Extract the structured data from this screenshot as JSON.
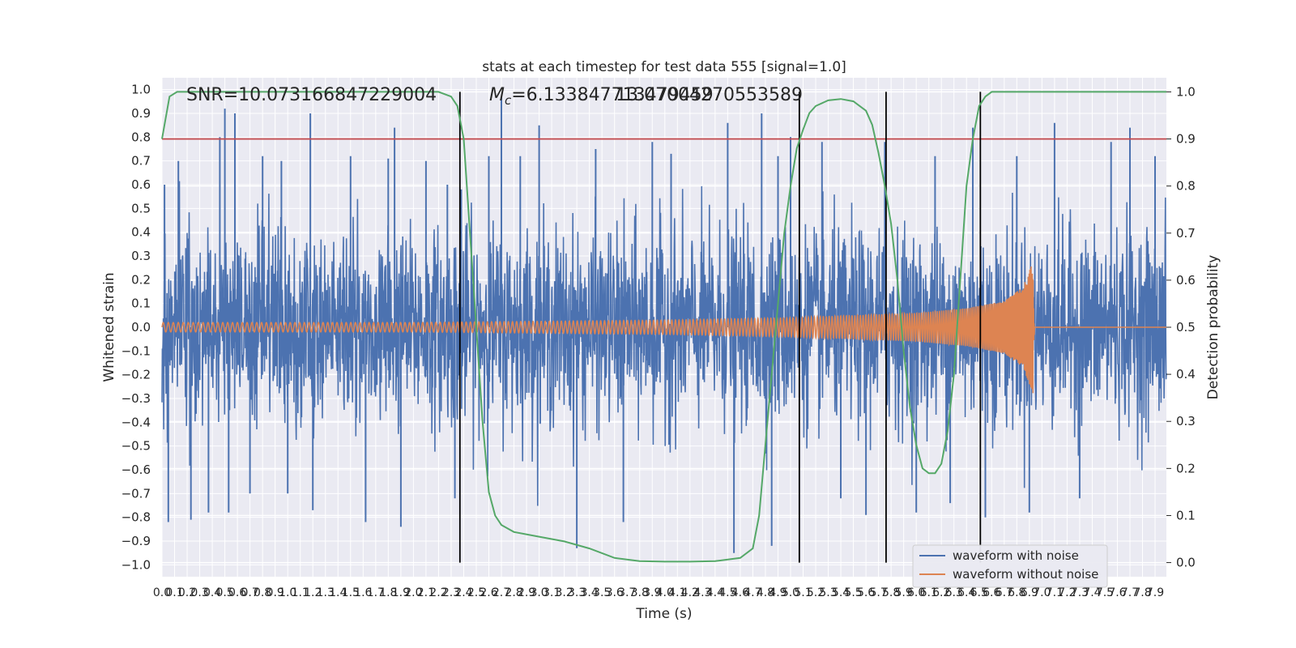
{
  "chart_data": {
    "type": "line",
    "title": "stats at each timestep for test data 555 [signal=1.0]",
    "xlabel": "Time (s)",
    "ylabel_left": "Whitened strain",
    "ylabel_right": "Detection probability",
    "xlim": [
      0.0,
      7.99
    ],
    "ylim_left": [
      -1.05,
      1.05
    ],
    "ylim_right": [
      -0.03,
      1.03
    ],
    "grid": true,
    "legend_position": "lower right",
    "annotations": {
      "snr": "SNR=10.073166847229004",
      "chirp_mass_symbol": "M",
      "chirp_mass_subscript": "c",
      "chirp_mass_value": "=6.133847713479459",
      "overlap_text": "13.07004270553589"
    },
    "x_ticks": [
      0.0,
      0.1,
      0.2,
      0.3,
      0.4,
      0.5,
      0.6,
      0.7,
      0.8,
      0.9,
      1.0,
      1.1,
      1.2,
      1.3,
      1.4,
      1.5,
      1.6,
      1.7,
      1.8,
      1.9,
      2.0,
      2.1,
      2.2,
      2.3,
      2.4,
      2.5,
      2.6,
      2.7,
      2.8,
      2.9,
      3.0,
      3.1,
      3.2,
      3.3,
      3.4,
      3.5,
      3.6,
      3.7,
      3.8,
      3.9,
      4.0,
      4.1,
      4.2,
      4.3,
      4.4,
      4.5,
      4.6,
      4.7,
      4.8,
      4.9,
      5.0,
      5.1,
      5.2,
      5.3,
      5.4,
      5.5,
      5.6,
      5.7,
      5.8,
      5.9,
      6.0,
      6.1,
      6.2,
      6.3,
      6.4,
      6.5,
      6.6,
      6.7,
      6.8,
      6.9,
      7.0,
      7.1,
      7.2,
      7.3,
      7.4,
      7.5,
      7.6,
      7.7,
      7.8,
      7.9
    ],
    "x_tick_labels": [
      "0.0",
      "0.1",
      "0.2",
      "0.3",
      "0.4",
      "0.5",
      "0.6",
      "0.7",
      "0.8",
      "0.9",
      "1.0",
      "1.1",
      "1.2",
      "1.3",
      "1.4",
      "1.5",
      "1.6",
      "1.7",
      "1.8",
      "1.9",
      "2.0",
      "2.1",
      "2.2",
      "2.3",
      "2.4",
      "2.5",
      "2.6",
      "2.7",
      "2.8",
      "2.9",
      "3.0",
      "3.1",
      "3.2",
      "3.3",
      "3.4",
      "3.5",
      "3.6",
      "3.7",
      "3.8",
      "3.9",
      "4.0",
      "4.1",
      "4.2",
      "4.3",
      "4.4",
      "4.5",
      "4.6",
      "4.7",
      "4.8",
      "4.9",
      "5.0",
      "5.1",
      "5.2",
      "5.3",
      "5.4",
      "5.5",
      "5.6",
      "5.7",
      "5.8",
      "5.9",
      "6.0",
      "6.1",
      "6.2",
      "6.3",
      "6.4",
      "6.5",
      "6.6",
      "6.7",
      "6.8",
      "6.9",
      "7.0",
      "7.1",
      "7.2",
      "7.3",
      "7.4",
      "7.5",
      "7.6",
      "7.7",
      "7.8",
      "7.9"
    ],
    "y_ticks_left": [
      -1.0,
      -0.9,
      -0.8,
      -0.7,
      -0.6,
      -0.5,
      -0.4,
      -0.3,
      -0.2,
      -0.1,
      0.0,
      0.1,
      0.2,
      0.3,
      0.4,
      0.5,
      0.6,
      0.7,
      0.8,
      0.9,
      1.0
    ],
    "y_tick_labels_left": [
      "−1.0",
      "−0.9",
      "−0.8",
      "−0.7",
      "−0.6",
      "−0.5",
      "−0.4",
      "−0.3",
      "−0.2",
      "−0.1",
      "0.0",
      "0.1",
      "0.2",
      "0.3",
      "0.4",
      "0.5",
      "0.6",
      "0.7",
      "0.8",
      "0.9",
      "1.0"
    ],
    "y_ticks_right": [
      0.0,
      0.1,
      0.2,
      0.3,
      0.4,
      0.5,
      0.6,
      0.7,
      0.8,
      0.9,
      1.0
    ],
    "y_tick_labels_right": [
      "0.0",
      "0.1",
      "0.2",
      "0.3",
      "0.4",
      "0.5",
      "0.6",
      "0.7",
      "0.8",
      "0.9",
      "1.0"
    ],
    "threshold_line": {
      "axis": "right",
      "y": 0.9,
      "color": "#c44e52"
    },
    "vertical_markers": {
      "x": [
        2.37,
        5.07,
        5.76,
        6.51
      ],
      "color": "#000000",
      "y_range_right": [
        0.0,
        1.0
      ]
    },
    "series": [
      {
        "name": "waveform with noise",
        "axis": "left",
        "color": "#4c72b0",
        "description_values": "dense noise; sample peaks",
        "peaks": [
          {
            "x": 0.02,
            "y": 0.6
          },
          {
            "x": 0.05,
            "y": -0.82
          },
          {
            "x": 0.13,
            "y": 0.7
          },
          {
            "x": 0.23,
            "y": -0.81
          },
          {
            "x": 0.37,
            "y": -0.78
          },
          {
            "x": 0.46,
            "y": 0.8
          },
          {
            "x": 0.5,
            "y": 0.92
          },
          {
            "x": 0.53,
            "y": -0.78
          },
          {
            "x": 0.58,
            "y": 0.9
          },
          {
            "x": 0.7,
            "y": -0.7
          },
          {
            "x": 0.8,
            "y": 0.72
          },
          {
            "x": 0.95,
            "y": 0.7
          },
          {
            "x": 1.0,
            "y": -0.7
          },
          {
            "x": 1.18,
            "y": 0.9
          },
          {
            "x": 1.2,
            "y": -0.77
          },
          {
            "x": 1.5,
            "y": 0.72
          },
          {
            "x": 1.62,
            "y": -0.82
          },
          {
            "x": 1.8,
            "y": 0.71
          },
          {
            "x": 1.85,
            "y": 0.84
          },
          {
            "x": 1.9,
            "y": -0.84
          },
          {
            "x": 2.1,
            "y": 0.7
          },
          {
            "x": 2.27,
            "y": 0.6
          },
          {
            "x": 2.33,
            "y": -0.72
          },
          {
            "x": 2.38,
            "y": 0.58
          },
          {
            "x": 2.6,
            "y": 0.72
          },
          {
            "x": 2.7,
            "y": 0.97
          },
          {
            "x": 2.85,
            "y": 0.72
          },
          {
            "x": 3.0,
            "y": 0.85
          },
          {
            "x": 3.3,
            "y": -0.93
          },
          {
            "x": 3.45,
            "y": 0.75
          },
          {
            "x": 3.67,
            "y": -0.82
          },
          {
            "x": 3.9,
            "y": 0.78
          },
          {
            "x": 4.05,
            "y": 0.73
          },
          {
            "x": 4.5,
            "y": 0.86
          },
          {
            "x": 4.55,
            "y": -0.95
          },
          {
            "x": 4.77,
            "y": 0.9
          },
          {
            "x": 4.85,
            "y": -0.92
          },
          {
            "x": 4.9,
            "y": 0.72
          },
          {
            "x": 5.0,
            "y": 0.8
          },
          {
            "x": 5.25,
            "y": 0.78
          },
          {
            "x": 5.4,
            "y": -0.72
          },
          {
            "x": 5.6,
            "y": -0.79
          },
          {
            "x": 5.75,
            "y": 0.78
          },
          {
            "x": 6.0,
            "y": -0.78
          },
          {
            "x": 6.15,
            "y": 0.72
          },
          {
            "x": 6.27,
            "y": -0.74
          },
          {
            "x": 6.45,
            "y": 0.84
          },
          {
            "x": 6.55,
            "y": -0.8
          },
          {
            "x": 6.8,
            "y": 0.72
          },
          {
            "x": 6.9,
            "y": -0.78
          },
          {
            "x": 7.1,
            "y": 0.86
          },
          {
            "x": 7.3,
            "y": -0.72
          },
          {
            "x": 7.55,
            "y": 0.78
          },
          {
            "x": 7.7,
            "y": 0.84
          },
          {
            "x": 7.9,
            "y": 0.72
          }
        ]
      },
      {
        "name": "waveform without noise",
        "axis": "left",
        "color": "#dd8452",
        "amplitude_envelope": [
          {
            "x": 0.0,
            "y": 0.02
          },
          {
            "x": 2.0,
            "y": 0.02
          },
          {
            "x": 3.0,
            "y": 0.025
          },
          {
            "x": 4.0,
            "y": 0.03
          },
          {
            "x": 5.0,
            "y": 0.04
          },
          {
            "x": 5.5,
            "y": 0.05
          },
          {
            "x": 6.0,
            "y": 0.06
          },
          {
            "x": 6.4,
            "y": 0.08
          },
          {
            "x": 6.7,
            "y": 0.11
          },
          {
            "x": 6.85,
            "y": 0.17
          },
          {
            "x": 6.93,
            "y": 0.28
          },
          {
            "x": 6.945,
            "y": 0.0
          },
          {
            "x": 7.99,
            "y": 0.0
          }
        ],
        "frequency_at_start_hz": 25,
        "merger_time": 6.94
      },
      {
        "name": "",
        "axis": "right",
        "color": "#55a868",
        "x": [
          0.0,
          0.06,
          0.12,
          0.3,
          1.0,
          2.0,
          2.2,
          2.3,
          2.35,
          2.4,
          2.45,
          2.5,
          2.55,
          2.6,
          2.65,
          2.7,
          2.8,
          3.0,
          3.2,
          3.4,
          3.6,
          3.8,
          4.0,
          4.2,
          4.4,
          4.6,
          4.7,
          4.75,
          4.8,
          4.85,
          4.9,
          4.95,
          5.0,
          5.05,
          5.1,
          5.15,
          5.2,
          5.3,
          5.4,
          5.5,
          5.6,
          5.65,
          5.7,
          5.75,
          5.8,
          5.85,
          5.9,
          5.95,
          6.0,
          6.05,
          6.1,
          6.15,
          6.2,
          6.25,
          6.3,
          6.35,
          6.4,
          6.45,
          6.5,
          6.55,
          6.6,
          6.7,
          7.0,
          7.5,
          7.99
        ],
        "y": [
          0.9,
          0.99,
          1.0,
          1.0,
          1.0,
          1.0,
          1.0,
          0.99,
          0.97,
          0.9,
          0.7,
          0.5,
          0.3,
          0.15,
          0.1,
          0.08,
          0.065,
          0.055,
          0.045,
          0.03,
          0.01,
          0.003,
          0.002,
          0.002,
          0.003,
          0.01,
          0.03,
          0.1,
          0.25,
          0.4,
          0.55,
          0.7,
          0.8,
          0.88,
          0.92,
          0.955,
          0.97,
          0.982,
          0.985,
          0.98,
          0.96,
          0.93,
          0.87,
          0.8,
          0.72,
          0.6,
          0.45,
          0.33,
          0.25,
          0.2,
          0.19,
          0.19,
          0.21,
          0.28,
          0.4,
          0.6,
          0.8,
          0.9,
          0.97,
          0.99,
          1.0,
          1.0,
          1.0,
          1.0,
          1.0
        ]
      }
    ],
    "legend": [
      {
        "label": "waveform with noise",
        "color": "#4c72b0"
      },
      {
        "label": "waveform without noise",
        "color": "#dd8452"
      }
    ]
  }
}
